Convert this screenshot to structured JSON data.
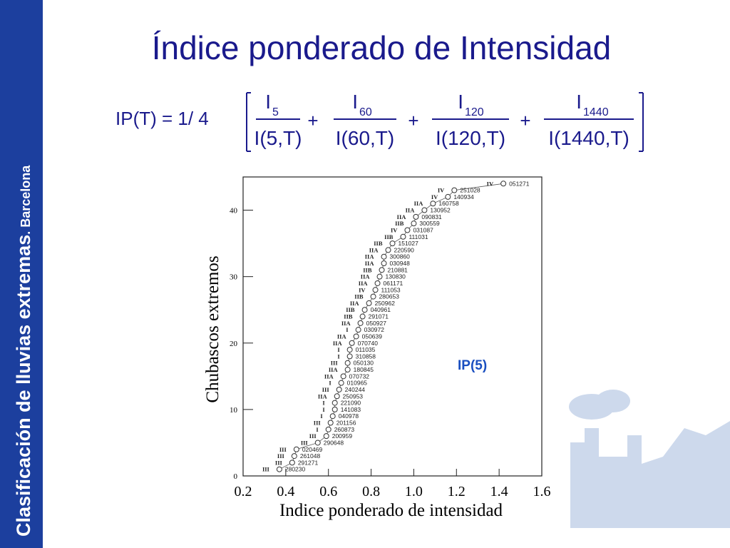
{
  "slide": {
    "side_title": "Clasificación de lluvias extremas",
    "side_subtitle": ". Barcelona",
    "title": "Índice ponderado de Intensidad",
    "formula": {
      "lhs": "IP(T) = 1/ 4",
      "operator": "+",
      "fractions": [
        {
          "num": "I",
          "sub": "5",
          "den": "I(5,T)"
        },
        {
          "num": "I",
          "sub": "60",
          "den": "I(60,T)"
        },
        {
          "num": "I",
          "sub": "120",
          "den": "I(120,T)"
        },
        {
          "num": "I",
          "sub": "1440",
          "den": "I(1440,T)"
        }
      ]
    }
  },
  "chart_data": {
    "type": "scatter",
    "xlabel": "Indice ponderado de intensidad",
    "ylabel": "Chubascos extremos",
    "annotation": "IP(5)",
    "color": "#333333",
    "x": [
      0.37,
      0.43,
      0.44,
      0.45,
      0.55,
      0.59,
      0.6,
      0.61,
      0.62,
      0.63,
      0.63,
      0.64,
      0.65,
      0.66,
      0.67,
      0.69,
      0.69,
      0.7,
      0.7,
      0.71,
      0.73,
      0.74,
      0.75,
      0.76,
      0.77,
      0.79,
      0.81,
      0.82,
      0.83,
      0.84,
      0.85,
      0.86,
      0.86,
      0.88,
      0.9,
      0.95,
      0.97,
      1.0,
      1.01,
      1.05,
      1.09,
      1.16,
      1.19,
      1.42
    ],
    "y": [
      1,
      2,
      3,
      4,
      5,
      6,
      7,
      8,
      9,
      10,
      11,
      12,
      13,
      14,
      15,
      16,
      17,
      18,
      19,
      20,
      21,
      22,
      23,
      24,
      25,
      26,
      27,
      28,
      29,
      30,
      31,
      32,
      33,
      34,
      35,
      36,
      37,
      38,
      39,
      40,
      41,
      42,
      43,
      44
    ],
    "codes": [
      "280230",
      "291271",
      "261048",
      "020469",
      "290648",
      "200959",
      "260873",
      "201156",
      "040978",
      "141083",
      "221090",
      "250953",
      "240244",
      "010965",
      "070732",
      "180845",
      "050130",
      "310858",
      "011035",
      "070740",
      "050639",
      "030972",
      "050927",
      "291071",
      "040961",
      "250962",
      "280653",
      "111053",
      "061171",
      "130830",
      "210881",
      "030948",
      "300860",
      "220590",
      "151027",
      "111031",
      "031087",
      "300559",
      "090831",
      "130952",
      "160758",
      "140934",
      "251028",
      "051271"
    ],
    "classes": [
      "III",
      "III",
      "III",
      "III",
      "III",
      "III",
      "I",
      "III",
      "I",
      "I",
      "I",
      "IIA",
      "III",
      "I",
      "IIA",
      "IIA",
      "III",
      "I",
      "I",
      "IIA",
      "IIA",
      "I",
      "IIA",
      "IIB",
      "IIB",
      "IIA",
      "IIB",
      "IV",
      "IIA",
      "IIA",
      "IIB",
      "IIA",
      "IIA",
      "IIA",
      "IIB",
      "IIB",
      "IV",
      "IIB",
      "IIA",
      "IIA",
      "IIA",
      "IV",
      "IV",
      "IV"
    ],
    "xlim": [
      0.2,
      1.6
    ],
    "ylim": [
      0,
      45
    ],
    "xticks": [
      0.2,
      0.4,
      0.6,
      0.8,
      {
        "value": 1,
        "label": "1.0"
      },
      1.2,
      1.4,
      1.6
    ],
    "yticks": [
      0,
      10,
      20,
      30,
      40
    ]
  }
}
